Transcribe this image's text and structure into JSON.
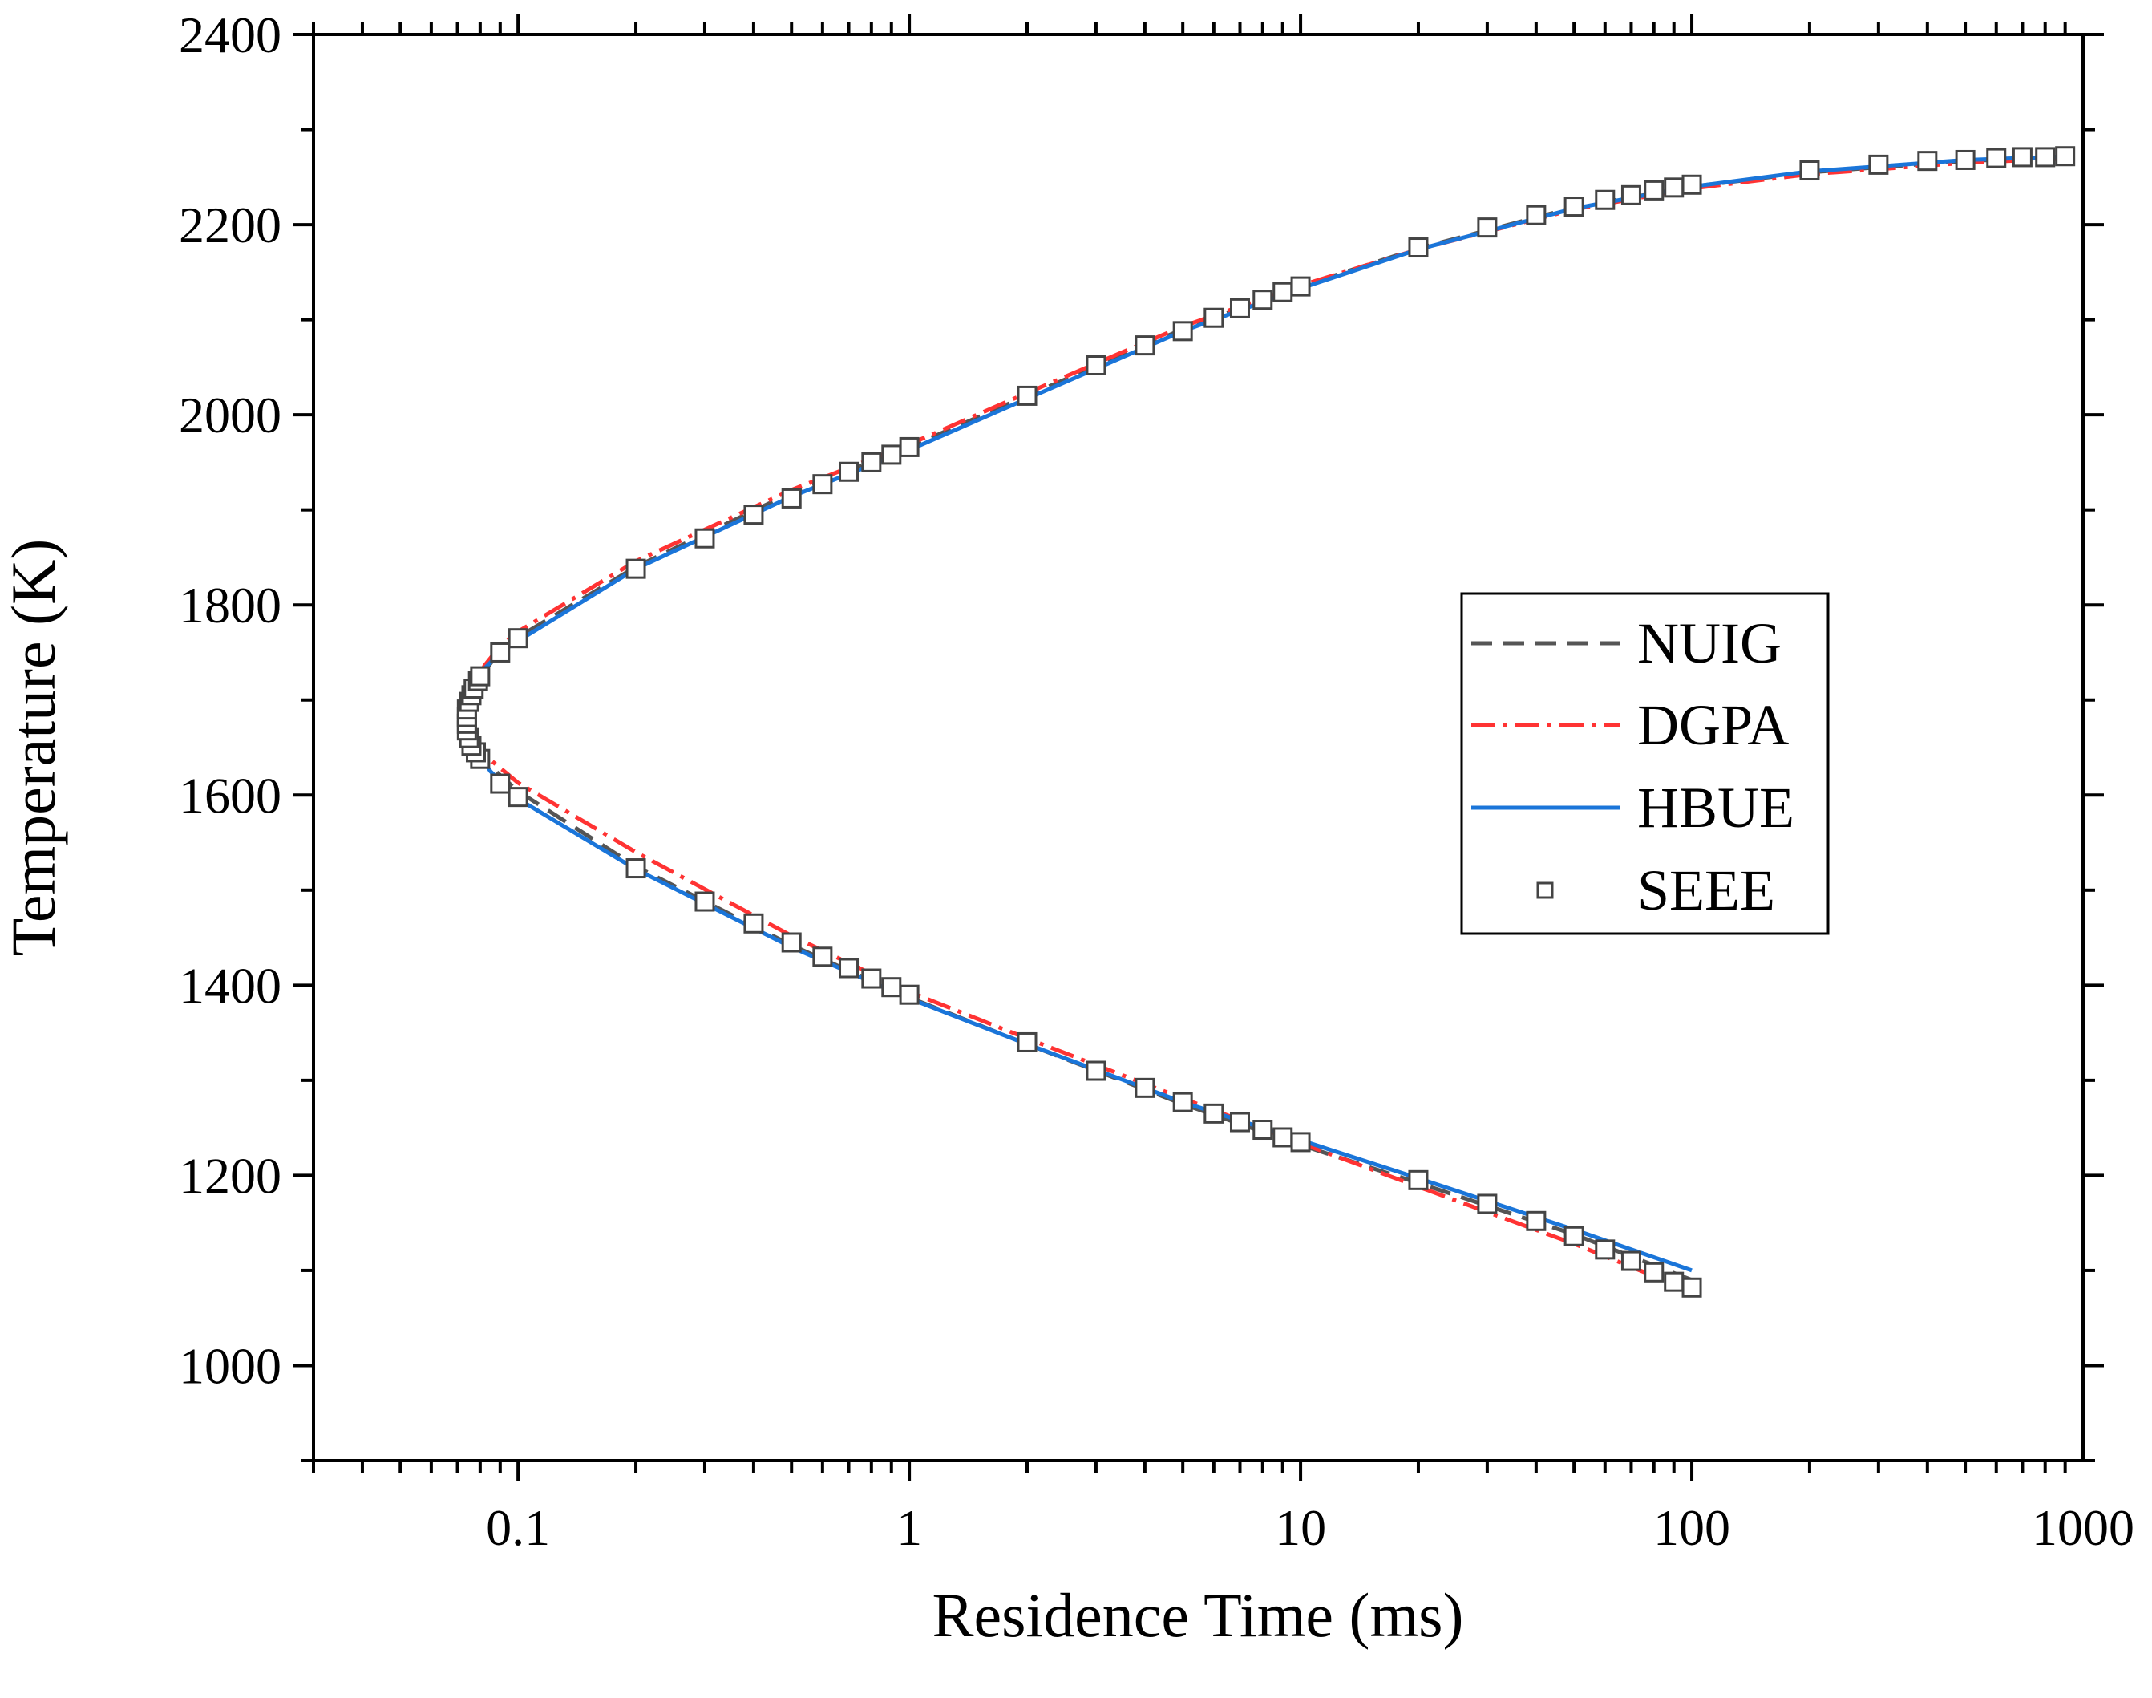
{
  "chart_data": {
    "type": "line",
    "title": "",
    "xlabel": "Residence Time (ms)",
    "ylabel": "Temperature (K)",
    "xscale": "log",
    "xlim": [
      0.03,
      1000
    ],
    "ylim": [
      900,
      2400
    ],
    "x_ticks": [
      0.1,
      1,
      10,
      100,
      1000
    ],
    "x_tick_labels": [
      "0.1",
      "1",
      "10",
      "100",
      "1000"
    ],
    "y_ticks": [
      1000,
      1200,
      1400,
      1600,
      1800,
      2000,
      2200,
      2400
    ],
    "y_tick_labels": [
      "1000",
      "1200",
      "1400",
      "1600",
      "1800",
      "2000",
      "2200",
      "2400"
    ],
    "grid": false,
    "legend_position": "center-right",
    "series": [
      {
        "name": "NUIG",
        "style": "dashed",
        "color": "#555555",
        "points": [
          [
            100,
            1090
          ],
          [
            50,
            1138
          ],
          [
            20,
            1192
          ],
          [
            10,
            1232
          ],
          [
            5,
            1275
          ],
          [
            2,
            1338
          ],
          [
            1,
            1387
          ],
          [
            0.5,
            1442
          ],
          [
            0.2,
            1525
          ],
          [
            0.1,
            1604
          ],
          [
            0.085,
            1630
          ],
          [
            0.077,
            1655
          ],
          [
            0.075,
            1680
          ],
          [
            0.077,
            1705
          ],
          [
            0.082,
            1730
          ],
          [
            0.09,
            1752
          ],
          [
            0.1,
            1766
          ],
          [
            0.2,
            1840
          ],
          [
            0.5,
            1918
          ],
          [
            1,
            1966
          ],
          [
            2,
            2020
          ],
          [
            5,
            2090
          ],
          [
            10,
            2135
          ],
          [
            20,
            2175
          ],
          [
            50,
            2218
          ],
          [
            100,
            2240
          ],
          [
            200,
            2255
          ],
          [
            500,
            2267
          ],
          [
            950,
            2271
          ]
        ]
      },
      {
        "name": "DGPA",
        "style": "dashdot",
        "color": "#ff3333",
        "points": [
          [
            100,
            1078
          ],
          [
            50,
            1128
          ],
          [
            20,
            1188
          ],
          [
            10,
            1234
          ],
          [
            5,
            1281
          ],
          [
            2,
            1344
          ],
          [
            1,
            1393
          ],
          [
            0.5,
            1452
          ],
          [
            0.2,
            1540
          ],
          [
            0.1,
            1613
          ],
          [
            0.085,
            1637
          ],
          [
            0.077,
            1660
          ],
          [
            0.075,
            1682
          ],
          [
            0.077,
            1710
          ],
          [
            0.082,
            1736
          ],
          [
            0.09,
            1757
          ],
          [
            0.1,
            1772
          ],
          [
            0.2,
            1846
          ],
          [
            0.5,
            1921
          ],
          [
            1,
            1969
          ],
          [
            2,
            2023
          ],
          [
            5,
            2093
          ],
          [
            10,
            2136
          ],
          [
            20,
            2174
          ],
          [
            50,
            2216
          ],
          [
            100,
            2238
          ],
          [
            200,
            2253
          ],
          [
            500,
            2265
          ],
          [
            950,
            2270
          ]
        ]
      },
      {
        "name": "HBUE",
        "style": "solid",
        "color": "#1a75d9",
        "points": [
          [
            100,
            1100
          ],
          [
            50,
            1143
          ],
          [
            20,
            1197
          ],
          [
            10,
            1237
          ],
          [
            5,
            1277
          ],
          [
            2,
            1338
          ],
          [
            1,
            1386
          ],
          [
            0.5,
            1440
          ],
          [
            0.2,
            1522
          ],
          [
            0.1,
            1596
          ],
          [
            0.085,
            1625
          ],
          [
            0.077,
            1652
          ],
          [
            0.075,
            1680
          ],
          [
            0.077,
            1708
          ],
          [
            0.082,
            1733
          ],
          [
            0.09,
            1750
          ],
          [
            0.1,
            1762
          ],
          [
            0.2,
            1838
          ],
          [
            0.5,
            1914
          ],
          [
            1,
            1963
          ],
          [
            2,
            2017
          ],
          [
            5,
            2088
          ],
          [
            10,
            2133
          ],
          [
            20,
            2174
          ],
          [
            50,
            2217
          ],
          [
            100,
            2240
          ],
          [
            200,
            2256
          ],
          [
            500,
            2268
          ],
          [
            950,
            2272
          ]
        ]
      },
      {
        "name": "SEEE",
        "style": "markers",
        "marker": "open-square",
        "color": "#444444",
        "points": [
          [
            100,
            1082
          ],
          [
            90,
            1088
          ],
          [
            80,
            1098
          ],
          [
            70,
            1110
          ],
          [
            60,
            1122
          ],
          [
            50,
            1136
          ],
          [
            40,
            1152
          ],
          [
            30,
            1170
          ],
          [
            20,
            1195
          ],
          [
            10,
            1235
          ],
          [
            9,
            1240
          ],
          [
            8,
            1248
          ],
          [
            7,
            1256
          ],
          [
            6,
            1265
          ],
          [
            5,
            1277
          ],
          [
            4,
            1292
          ],
          [
            3,
            1310
          ],
          [
            2,
            1340
          ],
          [
            1,
            1390
          ],
          [
            0.9,
            1398
          ],
          [
            0.8,
            1407
          ],
          [
            0.7,
            1418
          ],
          [
            0.6,
            1430
          ],
          [
            0.5,
            1445
          ],
          [
            0.4,
            1465
          ],
          [
            0.3,
            1488
          ],
          [
            0.2,
            1523
          ],
          [
            0.1,
            1598
          ],
          [
            0.09,
            1612
          ],
          [
            0.08,
            1638
          ],
          [
            0.078,
            1645
          ],
          [
            0.076,
            1652
          ],
          [
            0.075,
            1660
          ],
          [
            0.074,
            1668
          ],
          [
            0.074,
            1675
          ],
          [
            0.074,
            1682
          ],
          [
            0.074,
            1690
          ],
          [
            0.075,
            1698
          ],
          [
            0.076,
            1705
          ],
          [
            0.077,
            1712
          ],
          [
            0.079,
            1720
          ],
          [
            0.08,
            1725
          ],
          [
            0.09,
            1750
          ],
          [
            0.1,
            1765
          ],
          [
            0.2,
            1838
          ],
          [
            0.3,
            1870
          ],
          [
            0.4,
            1895
          ],
          [
            0.5,
            1912
          ],
          [
            0.6,
            1927
          ],
          [
            0.7,
            1940
          ],
          [
            0.8,
            1950
          ],
          [
            0.9,
            1958
          ],
          [
            1,
            1966
          ],
          [
            2,
            2020
          ],
          [
            3,
            2052
          ],
          [
            4,
            2073
          ],
          [
            5,
            2088
          ],
          [
            6,
            2102
          ],
          [
            7,
            2112
          ],
          [
            8,
            2121
          ],
          [
            9,
            2129
          ],
          [
            10,
            2135
          ],
          [
            20,
            2176
          ],
          [
            30,
            2197
          ],
          [
            40,
            2210
          ],
          [
            50,
            2219
          ],
          [
            60,
            2226
          ],
          [
            70,
            2231
          ],
          [
            80,
            2236
          ],
          [
            90,
            2239
          ],
          [
            100,
            2242
          ],
          [
            200,
            2257
          ],
          [
            300,
            2263
          ],
          [
            400,
            2267
          ],
          [
            500,
            2268
          ],
          [
            600,
            2270
          ],
          [
            700,
            2271
          ],
          [
            800,
            2271
          ],
          [
            900,
            2272
          ]
        ]
      }
    ]
  }
}
